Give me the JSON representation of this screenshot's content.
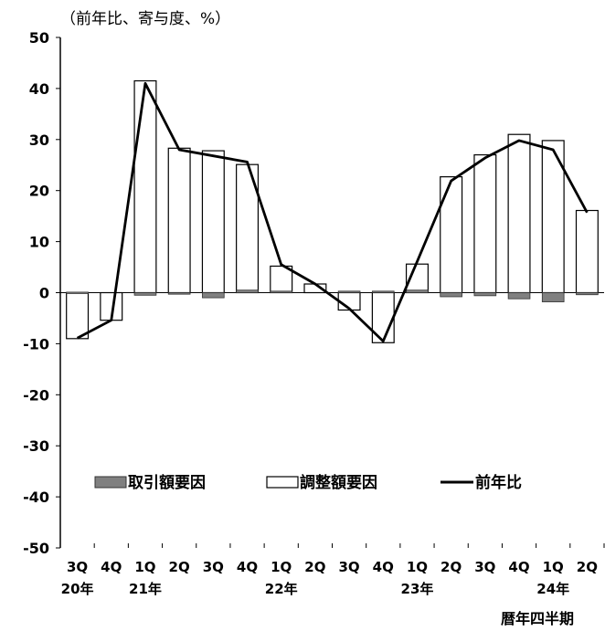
{
  "chart_data": {
    "type": "bar+line",
    "unit_label": "（前年比、寄与度、%）",
    "xlabel": "暦年四半期",
    "categories": [
      "3Q",
      "4Q",
      "1Q",
      "2Q",
      "3Q",
      "4Q",
      "1Q",
      "2Q",
      "3Q",
      "4Q",
      "1Q",
      "2Q",
      "3Q",
      "4Q",
      "1Q",
      "2Q"
    ],
    "year_labels": [
      "20年",
      "",
      "21年",
      "",
      "",
      "",
      "22年",
      "",
      "",
      "",
      "23年",
      "",
      "",
      "",
      "24年",
      ""
    ],
    "ylim": [
      -50,
      50
    ],
    "yticks": [
      50,
      40,
      30,
      20,
      10,
      0,
      -10,
      -20,
      -30,
      -40,
      -50
    ],
    "series": [
      {
        "name": "取引額要因",
        "kind": "bar",
        "color": "#808080",
        "values": [
          0.1,
          0,
          -0.5,
          -0.3,
          -1.0,
          0.5,
          0.3,
          0,
          0.3,
          0.3,
          0.5,
          -0.8,
          -0.6,
          -1.2,
          -1.8,
          -0.4
        ]
      },
      {
        "name": "調整額要因",
        "kind": "bar",
        "color": "#ffffff",
        "values": [
          -9.0,
          -5.4,
          41.5,
          28.3,
          27.8,
          25.1,
          5.2,
          1.7,
          -3.4,
          -9.8,
          5.6,
          22.7,
          27.0,
          31.0,
          29.8,
          16.1
        ]
      },
      {
        "name": "前年比",
        "kind": "line",
        "color": "#000000",
        "values": [
          -8.9,
          -5.4,
          41.0,
          28.0,
          26.8,
          25.6,
          5.5,
          1.7,
          -3.1,
          -9.5,
          6.1,
          21.9,
          26.4,
          29.8,
          28.0,
          15.7
        ]
      }
    ],
    "legend_position": "lower-middle",
    "grid": false
  }
}
